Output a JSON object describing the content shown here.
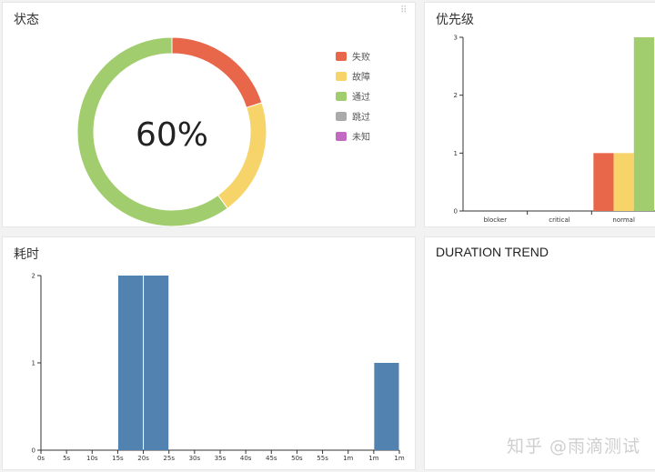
{
  "status_card": {
    "title": "状态",
    "center_label": "60%",
    "legend": [
      {
        "label": "失败",
        "color": "#e8674b"
      },
      {
        "label": "故障",
        "color": "#f7d46a"
      },
      {
        "label": "通过",
        "color": "#a2cd6f"
      },
      {
        "label": "跳过",
        "color": "#aaaaaa"
      },
      {
        "label": "未知",
        "color": "#c26ac2"
      }
    ]
  },
  "priority_card": {
    "title": "优先级"
  },
  "duration_card": {
    "title": "耗时"
  },
  "trend_card": {
    "title": "DURATION TREND"
  },
  "watermark": "知乎 @雨滴测试",
  "chart_data": [
    {
      "type": "pie",
      "subtype": "donut",
      "title": "状态",
      "center_label": "60%",
      "slices": [
        {
          "label": "失败",
          "value": 1,
          "color": "#e8674b"
        },
        {
          "label": "故障",
          "value": 1,
          "color": "#f7d46a"
        },
        {
          "label": "通过",
          "value": 3,
          "color": "#a2cd6f"
        },
        {
          "label": "跳过",
          "value": 0,
          "color": "#aaaaaa"
        },
        {
          "label": "未知",
          "value": 0,
          "color": "#c26ac2"
        }
      ],
      "legend_position": "right"
    },
    {
      "type": "bar",
      "stacked": false,
      "title": "优先级",
      "categories": [
        "blocker",
        "critical",
        "normal"
      ],
      "series": [
        {
          "name": "失败",
          "color": "#e8674b",
          "values": [
            0,
            0,
            1
          ]
        },
        {
          "name": "故障",
          "color": "#f7d46a",
          "values": [
            0,
            0,
            1
          ]
        },
        {
          "name": "通过",
          "color": "#a2cd6f",
          "values": [
            0,
            0,
            3
          ]
        }
      ],
      "ylim": [
        0,
        3
      ],
      "yticks": [
        0,
        1,
        2,
        3
      ],
      "grid": false
    },
    {
      "type": "bar",
      "subtype": "histogram",
      "title": "耗时",
      "x_tick_labels": [
        "0s",
        "5s",
        "10s",
        "15s",
        "20s",
        "25s",
        "30s",
        "35s",
        "40s",
        "45s",
        "50s",
        "55s",
        "1m",
        "1m",
        "1m"
      ],
      "x_tick_values": [
        0,
        5,
        10,
        15,
        20,
        25,
        30,
        35,
        40,
        45,
        50,
        55,
        60,
        65,
        70
      ],
      "bins": [
        {
          "x0": 15,
          "x1": 20,
          "count": 2
        },
        {
          "x0": 20,
          "x1": 25,
          "count": 2
        },
        {
          "x0": 65,
          "x1": 70,
          "count": 1
        }
      ],
      "xlim": [
        0,
        70
      ],
      "ylim": [
        0,
        2
      ],
      "yticks": [
        0,
        1,
        2
      ],
      "bar_color": "#5182b0",
      "grid": false
    }
  ]
}
